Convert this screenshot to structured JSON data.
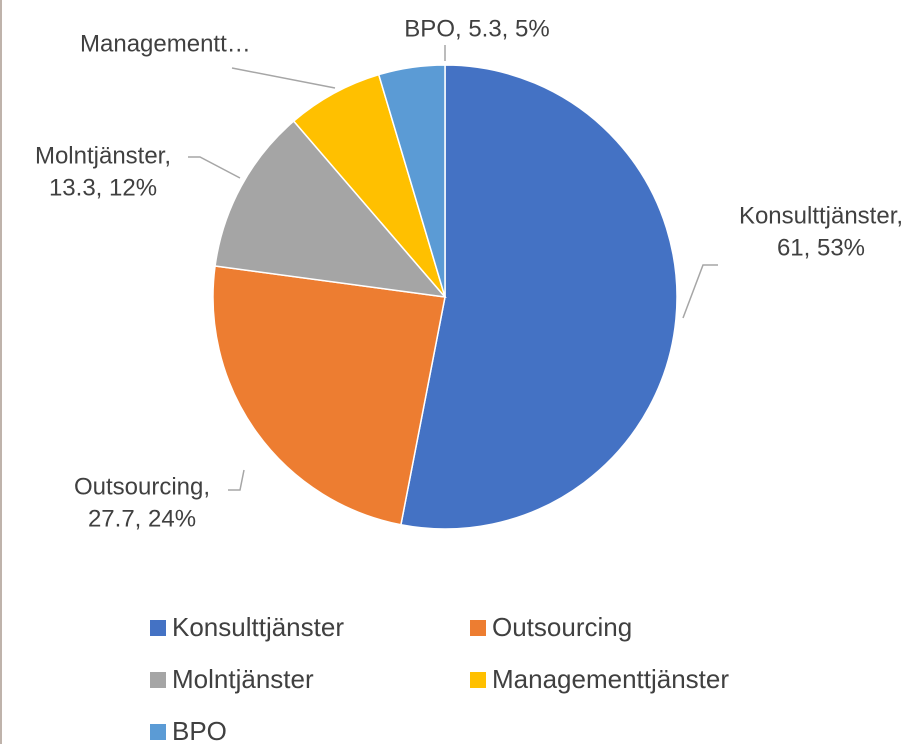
{
  "chart_data": {
    "type": "pie",
    "categories": [
      "Konsulttjänster",
      "Outsourcing",
      "Molntjänster",
      "Managementtjänster",
      "BPO"
    ],
    "values": [
      61,
      27.7,
      13.3,
      7.7,
      5.3
    ],
    "colors": [
      "#4472c4",
      "#ed7d31",
      "#a5a5a5",
      "#ffc000",
      "#5b9bd5"
    ],
    "data_labels": [
      [
        "Konsulttjänster,",
        "61, 53%"
      ],
      [
        "Outsourcing,",
        "27.7, 24%"
      ],
      [
        "Molntjänster,",
        "13.3, 12%"
      ],
      [
        "Managementt…"
      ],
      [
        "BPO, 5.3, 5%"
      ]
    ],
    "legend": "bottom"
  }
}
